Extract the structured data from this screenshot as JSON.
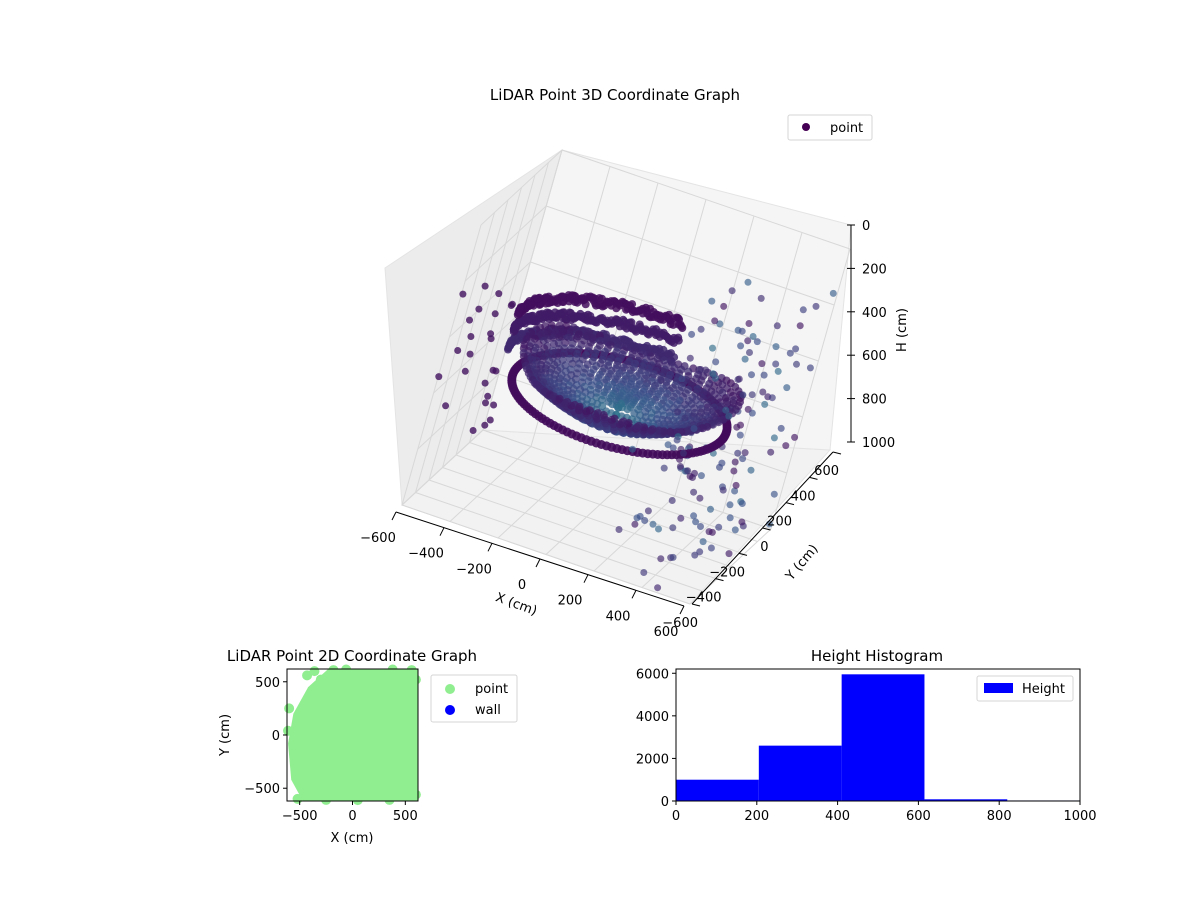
{
  "chart_data": [
    {
      "type": "scatter3d",
      "title": "LiDAR Point 3D Coordinate Graph",
      "xlabel": "X (cm)",
      "ylabel": "Y (cm)",
      "zlabel": "H (cm)",
      "xlim": [
        -600,
        600
      ],
      "ylim": [
        -600,
        600
      ],
      "zlim": [
        0,
        1000
      ],
      "z_inverted": true,
      "x_ticks": [
        "−600",
        "−400",
        "−200",
        "0",
        "200",
        "400",
        "600"
      ],
      "y_ticks": [
        "−600",
        "−400",
        "−200",
        "0",
        "200",
        "400",
        "600"
      ],
      "z_ticks": [
        "0",
        "200",
        "400",
        "600",
        "800",
        "1000"
      ],
      "grid": true,
      "colormap": "viridis",
      "legend": {
        "placement": "upper-right",
        "entries": [
          {
            "label": "point",
            "color": "#440154"
          }
        ]
      },
      "shape": "bowl-shaped point cloud, rim near H≈500–600, radius ≈450 cm"
    },
    {
      "type": "scatter",
      "title": "LiDAR Point 2D Coordinate Graph",
      "xlabel": "X (cm)",
      "ylabel": "Y (cm)",
      "xlim": [
        -620,
        620
      ],
      "ylim": [
        -620,
        620
      ],
      "x_ticks": [
        "−500",
        "0",
        "500"
      ],
      "y_ticks": [
        "−500",
        "0",
        "500"
      ],
      "legend": {
        "placement": "outside-right",
        "entries": [
          {
            "label": "point",
            "color": "#90ee90"
          },
          {
            "label": "wall",
            "color": "#0000ff"
          }
        ]
      }
    },
    {
      "type": "bar",
      "title": "Height Histogram",
      "xlim": [
        0,
        1000
      ],
      "ylim": [
        0,
        6200
      ],
      "x_ticks": [
        "0",
        "200",
        "400",
        "600",
        "800",
        "1000"
      ],
      "y_ticks": [
        "0",
        "2000",
        "4000",
        "6000"
      ],
      "bins": [
        {
          "from": 0,
          "to": 205,
          "count": 1000
        },
        {
          "from": 205,
          "to": 410,
          "count": 2600
        },
        {
          "from": 410,
          "to": 615,
          "count": 5950
        },
        {
          "from": 615,
          "to": 820,
          "count": 80
        },
        {
          "from": 820,
          "to": 1000,
          "count": 25
        }
      ],
      "color": "#0000ff",
      "legend": {
        "placement": "upper-right",
        "entries": [
          {
            "label": "Height",
            "color": "#0000ff"
          }
        ]
      }
    }
  ]
}
